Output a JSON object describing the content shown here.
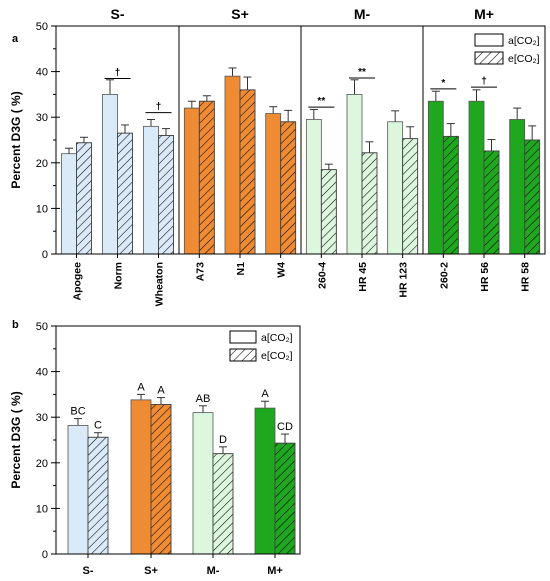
{
  "chart_data": [
    {
      "panel_label": "a",
      "type": "bar",
      "ylabel": "Percent D3G  ( %)",
      "ylim": [
        0,
        50
      ],
      "yticks": [
        0,
        10,
        20,
        30,
        40,
        50
      ],
      "groups": [
        {
          "name": "S-",
          "categories": [
            "Apogee",
            "Norm",
            "Wheaton"
          ],
          "color": "#dbeaf8"
        },
        {
          "name": "S+",
          "categories": [
            "A73",
            "N1",
            "W4"
          ],
          "color": "#ef8b33"
        },
        {
          "name": "M-",
          "categories": [
            "260-4",
            "HR 45",
            "HR 123"
          ],
          "color": "#ddf7df"
        },
        {
          "name": "M+",
          "categories": [
            "260-2",
            "HR 56",
            "HR 58"
          ],
          "color": "#1fa81f"
        }
      ],
      "categories": [
        "Apogee",
        "Norm",
        "Wheaton",
        "A73",
        "N1",
        "W4",
        "260-4",
        "HR 45",
        "HR 123",
        "260-2",
        "HR 56",
        "HR 58"
      ],
      "series": [
        {
          "name": "a[CO₂]",
          "pattern": "solid",
          "values": [
            22.0,
            35.0,
            28.0,
            32.0,
            39.0,
            30.8,
            29.5,
            35.0,
            29.0,
            33.5,
            33.5,
            29.5
          ],
          "errors": [
            1.2,
            3.2,
            1.5,
            1.5,
            1.8,
            1.5,
            2.2,
            3.2,
            2.4,
            2.2,
            2.5,
            2.5
          ]
        },
        {
          "name": "e[CO₂]",
          "pattern": "hatched",
          "values": [
            24.4,
            26.5,
            26.0,
            33.5,
            36.0,
            29.0,
            18.5,
            22.2,
            25.3,
            25.8,
            22.6,
            25.0
          ],
          "errors": [
            1.2,
            1.8,
            1.5,
            1.2,
            2.8,
            2.5,
            1.2,
            2.4,
            2.6,
            2.8,
            2.5,
            3.1
          ]
        }
      ],
      "annotations": [
        {
          "category_index": 1,
          "text": "†",
          "y": 38.5
        },
        {
          "category_index": 2,
          "text": "†",
          "y": 31.0
        },
        {
          "category_index": 6,
          "text": "**",
          "y": 32.2
        },
        {
          "category_index": 7,
          "text": "**",
          "y": 38.6
        },
        {
          "category_index": 9,
          "text": "*",
          "y": 36.2
        },
        {
          "category_index": 10,
          "text": "†",
          "y": 36.6
        }
      ],
      "legend_position": "top-right",
      "grid": false
    },
    {
      "panel_label": "b",
      "type": "bar",
      "ylabel": "Percent D3G  ( %)",
      "ylim": [
        0,
        50
      ],
      "yticks": [
        0,
        10,
        20,
        30,
        40,
        50
      ],
      "categories": [
        "S-",
        "S+",
        "M-",
        "M+"
      ],
      "colors": [
        "#dbeaf8",
        "#ef8b33",
        "#ddf7df",
        "#1fa81f"
      ],
      "series": [
        {
          "name": "a[CO₂]",
          "pattern": "solid",
          "values": [
            28.2,
            33.8,
            31.0,
            32.0
          ],
          "errors": [
            1.5,
            1.2,
            1.5,
            1.5
          ],
          "letters": [
            "BC",
            "A",
            "AB",
            "A"
          ]
        },
        {
          "name": "e[CO₂]",
          "pattern": "hatched",
          "values": [
            25.6,
            32.8,
            22.0,
            24.3
          ],
          "errors": [
            1.0,
            1.5,
            1.5,
            2.0
          ],
          "letters": [
            "C",
            "A",
            "D",
            "CD"
          ]
        }
      ],
      "legend_position": "top-left",
      "grid": false
    }
  ]
}
